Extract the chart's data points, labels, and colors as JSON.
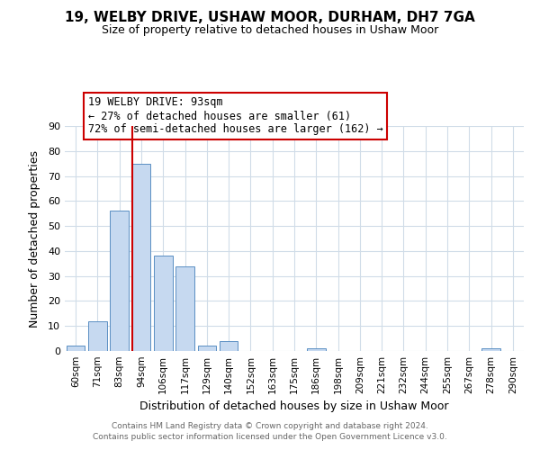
{
  "title": "19, WELBY DRIVE, USHAW MOOR, DURHAM, DH7 7GA",
  "subtitle": "Size of property relative to detached houses in Ushaw Moor",
  "xlabel": "Distribution of detached houses by size in Ushaw Moor",
  "ylabel": "Number of detached properties",
  "bar_labels": [
    "60sqm",
    "71sqm",
    "83sqm",
    "94sqm",
    "106sqm",
    "117sqm",
    "129sqm",
    "140sqm",
    "152sqm",
    "163sqm",
    "175sqm",
    "186sqm",
    "198sqm",
    "209sqm",
    "221sqm",
    "232sqm",
    "244sqm",
    "255sqm",
    "267sqm",
    "278sqm",
    "290sqm"
  ],
  "bar_values": [
    2,
    12,
    56,
    75,
    38,
    34,
    2,
    4,
    0,
    0,
    0,
    1,
    0,
    0,
    0,
    0,
    0,
    0,
    0,
    1,
    0
  ],
  "bar_color": "#c6d9f0",
  "bar_edge_color": "#5a8fc3",
  "property_line_color": "#cc0000",
  "ylim": [
    0,
    90
  ],
  "yticks": [
    0,
    10,
    20,
    30,
    40,
    50,
    60,
    70,
    80,
    90
  ],
  "annotation_title": "19 WELBY DRIVE: 93sqm",
  "annotation_line1": "← 27% of detached houses are smaller (61)",
  "annotation_line2": "72% of semi-detached houses are larger (162) →",
  "annotation_box_color": "#ffffff",
  "annotation_box_edge": "#cc0000",
  "footer1": "Contains HM Land Registry data © Crown copyright and database right 2024.",
  "footer2": "Contains public sector information licensed under the Open Government Licence v3.0.",
  "background_color": "#ffffff",
  "grid_color": "#d0dce8",
  "title_fontsize": 11,
  "subtitle_fontsize": 9
}
